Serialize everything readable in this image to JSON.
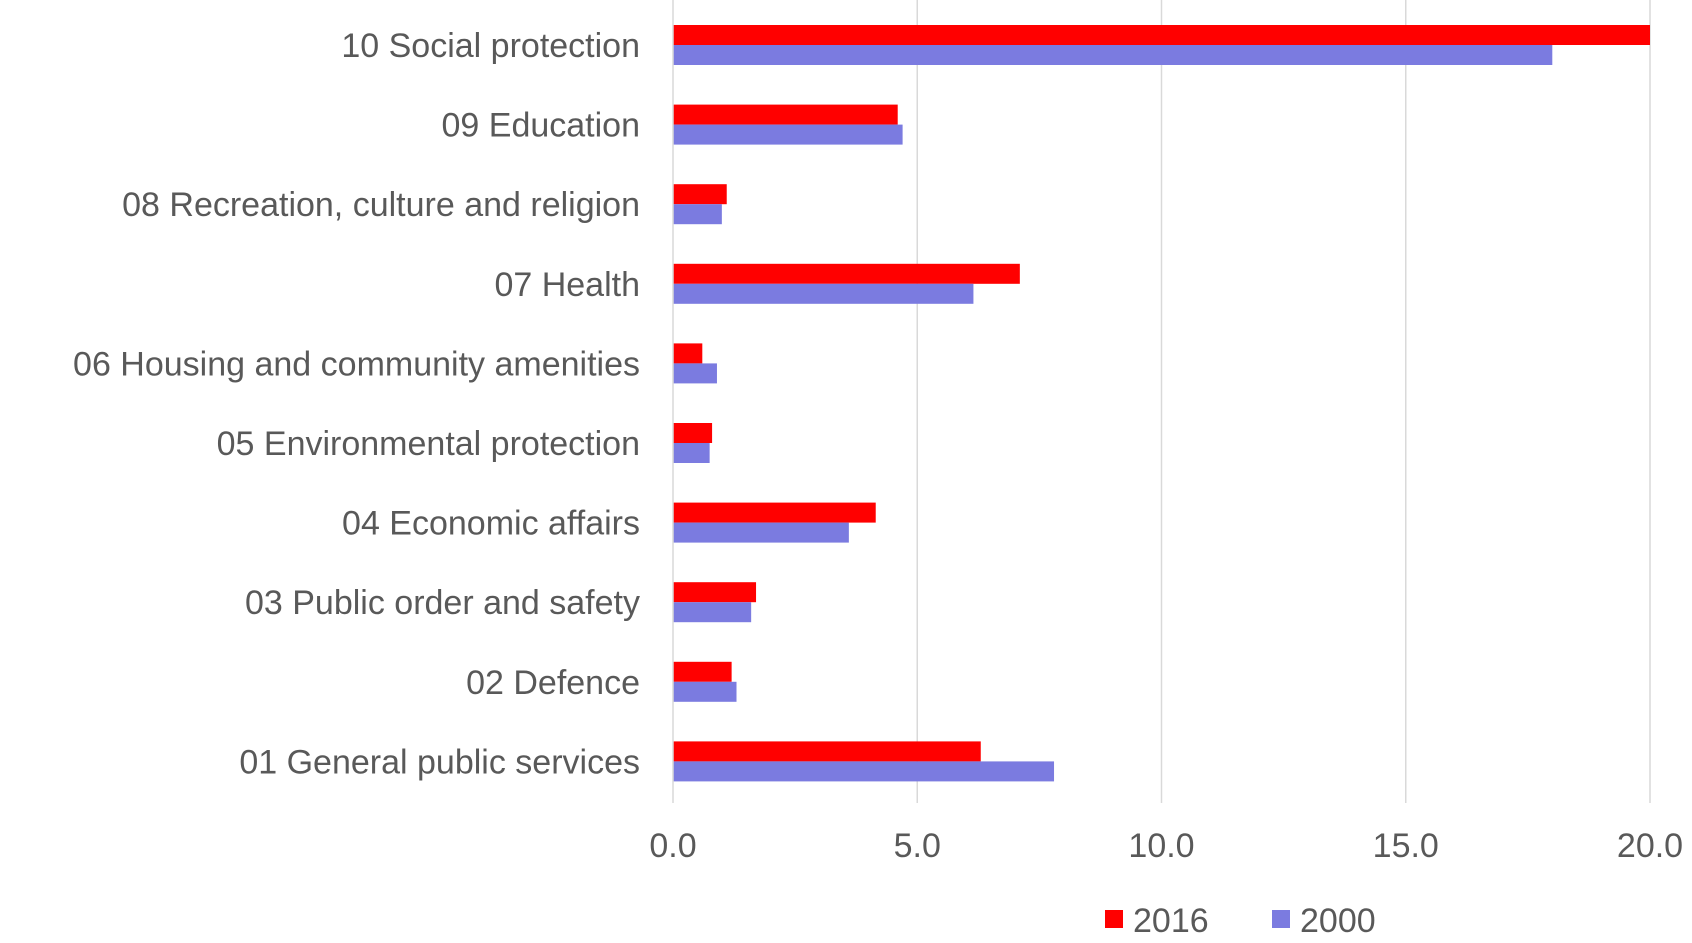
{
  "chart_data": {
    "type": "bar",
    "orientation": "horizontal",
    "categories": [
      "10 Social protection",
      "09 Education",
      "08 Recreation, culture and religion",
      "07 Health",
      "06 Housing and community amenities",
      "05 Environmental protection",
      "04 Economic affairs",
      "03 Public order and safety",
      "02 Defence",
      "01 General public services"
    ],
    "series": [
      {
        "name": "2016",
        "color": "#ff0000",
        "values": [
          20.0,
          4.6,
          1.1,
          7.1,
          0.6,
          0.8,
          4.15,
          1.7,
          1.2,
          6.3
        ]
      },
      {
        "name": "2000",
        "color": "#7b7be0",
        "values": [
          18.0,
          4.7,
          1.0,
          6.15,
          0.9,
          0.75,
          3.6,
          1.6,
          1.3,
          7.8
        ]
      }
    ],
    "xlim": [
      0,
      20
    ],
    "x_ticks": [
      "0.0",
      "5.0",
      "10.0",
      "15.0",
      "20.0"
    ],
    "title": "",
    "xlabel": "",
    "ylabel": "",
    "grid": "vertical",
    "legend_position": "bottom"
  }
}
